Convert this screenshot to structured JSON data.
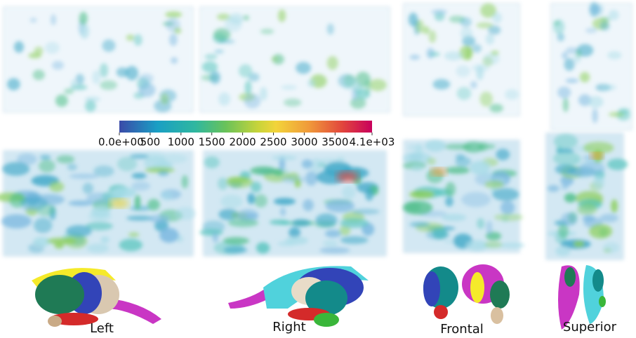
{
  "colorbar": {
    "lim": [
      0,
      4100
    ],
    "ticks": [
      {
        "value": 0,
        "label": "0.0e+00"
      },
      500,
      1000,
      1500,
      2000,
      2500,
      3000,
      3500,
      {
        "value": 4100,
        "label": "4.1e+03"
      }
    ]
  },
  "views": [
    "Left",
    "Right",
    "Frontal",
    "Superior"
  ]
}
